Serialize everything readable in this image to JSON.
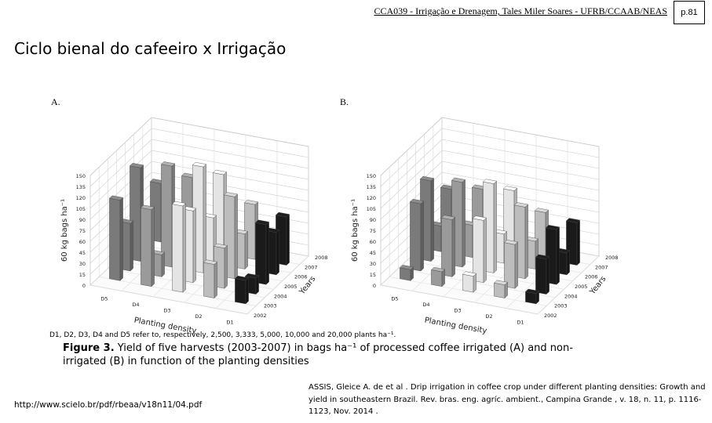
{
  "header": {
    "course": "CCA039 - Irrigação e Drenagem, Tales Miler Soares - UFRB/CCAAB/NEAS",
    "page": "p.81"
  },
  "slide": {
    "title": "Ciclo bienal do cafeeiro x Irrigação"
  },
  "figure": {
    "panel_a_label": "A.",
    "panel_b_label": "B.",
    "note": "D1, D2, D3, D4 and D5 refer to, respectively, 2,500, 3,333, 5,000, 10,000 and 20,000 plants ha⁻¹.",
    "caption_label": "Figure 3.",
    "caption_text": "Yield of five harvests (2003-2007) in bags ha⁻¹ of processed coffee irrigated (A) and non-irrigated (B) in function of the planting densities"
  },
  "chart_data": [
    {
      "type": "bar",
      "panel": "A",
      "xlabel": "Planting density",
      "ylabel": "60 kg bags ha⁻¹",
      "zlabel": "Years",
      "yticks": [
        0,
        15,
        30,
        45,
        60,
        75,
        90,
        105,
        120,
        135,
        150
      ],
      "ylim": [
        0,
        150
      ],
      "categories": [
        "D5",
        "D4",
        "D3",
        "D2",
        "D1"
      ],
      "years": [
        "2002",
        "2003",
        "2004",
        "2005",
        "2006",
        "2007",
        "2008"
      ],
      "colors": [
        "#7a7a7a",
        "#9a9a9a",
        "#e4e4e4",
        "#bdbdbd",
        "#1a1a1a"
      ],
      "series": [
        {
          "name": "2003",
          "values": [
            110,
            105,
            118,
            46,
            32
          ]
        },
        {
          "name": "2004",
          "values": [
            65,
            30,
            98,
            55,
            22
          ]
        },
        {
          "name": "2005",
          "values": [
            128,
            138,
            145,
            112,
            82
          ]
        },
        {
          "name": "2006",
          "values": [
            40,
            50,
            62,
            48,
            58
          ]
        },
        {
          "name": "2007",
          "values": [
            80,
            96,
            108,
            75,
            66
          ]
        }
      ]
    },
    {
      "type": "bar",
      "panel": "B",
      "xlabel": "Planting density",
      "ylabel": "60 kg bags ha⁻¹",
      "zlabel": "Years",
      "yticks": [
        0,
        15,
        30,
        45,
        60,
        75,
        90,
        105,
        120,
        135,
        150
      ],
      "ylim": [
        0,
        150
      ],
      "categories": [
        "D5",
        "D4",
        "D3",
        "D2",
        "D1"
      ],
      "years": [
        "2002",
        "2003",
        "2004",
        "2005",
        "2006",
        "2007",
        "2008"
      ],
      "colors": [
        "#7a7a7a",
        "#9a9a9a",
        "#e4e4e4",
        "#bdbdbd",
        "#1a1a1a"
      ],
      "series": [
        {
          "name": "2003",
          "values": [
            15,
            20,
            22,
            18,
            14
          ]
        },
        {
          "name": "2004",
          "values": [
            92,
            78,
            85,
            60,
            48
          ]
        },
        {
          "name": "2005",
          "values": [
            110,
            116,
            122,
            98,
            75
          ]
        },
        {
          "name": "2006",
          "values": [
            35,
            44,
            40,
            38,
            30
          ]
        },
        {
          "name": "2007",
          "values": [
            72,
            80,
            86,
            64,
            58
          ]
        }
      ]
    }
  ],
  "footer": {
    "url": "http://www.scielo.br/pdf/rbeaa/v18n11/04.pdf",
    "citation": "ASSIS, Gleice A. de et al . Drip irrigation in coffee crop under different planting densities: Growth and yield in southeastern Brazil. Rev. bras. eng. agríc. ambient.,  Campina Grande ,  v. 18, n. 11, p. 1116-1123,  Nov.  2014 ."
  }
}
